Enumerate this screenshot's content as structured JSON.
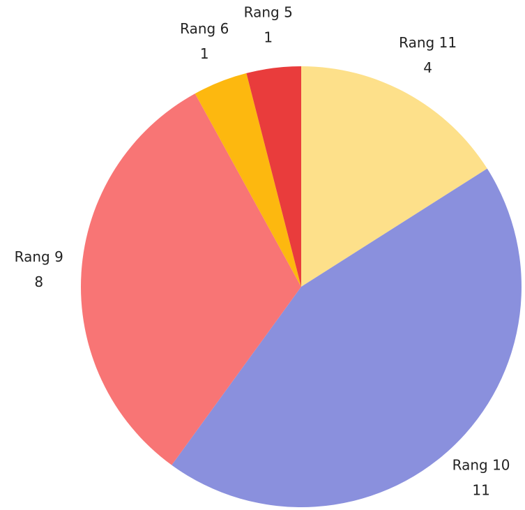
{
  "chart_data": {
    "type": "pie",
    "categories": [
      "Rang 11",
      "Rang 10",
      "Rang 9",
      "Rang 6",
      "Rang 5"
    ],
    "values": [
      4,
      11,
      8,
      1,
      1
    ],
    "colors": [
      "#fde08a",
      "#8a90dd",
      "#f87575",
      "#fdb80f",
      "#e93c3c"
    ]
  }
}
